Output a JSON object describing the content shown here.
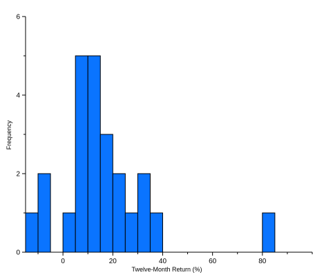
{
  "chart_data": {
    "type": "bar",
    "title": "",
    "xlabel": "Twelve-Month Return (%)",
    "ylabel": "Frequency",
    "xlim": [
      -15,
      100
    ],
    "ylim": [
      0,
      6
    ],
    "x_ticks": [
      0,
      20,
      40,
      60,
      80
    ],
    "x_minor_step": 10,
    "y_ticks": [
      0,
      2,
      4,
      6
    ],
    "y_minor_step": 1,
    "bin_width": 5,
    "bins": [
      {
        "start": -15,
        "end": -10,
        "count": 1
      },
      {
        "start": -10,
        "end": -5,
        "count": 2
      },
      {
        "start": 0,
        "end": 5,
        "count": 1
      },
      {
        "start": 5,
        "end": 10,
        "count": 5
      },
      {
        "start": 10,
        "end": 15,
        "count": 5
      },
      {
        "start": 15,
        "end": 20,
        "count": 3
      },
      {
        "start": 20,
        "end": 25,
        "count": 2
      },
      {
        "start": 25,
        "end": 30,
        "count": 1
      },
      {
        "start": 30,
        "end": 35,
        "count": 2
      },
      {
        "start": 35,
        "end": 40,
        "count": 1
      },
      {
        "start": 80,
        "end": 85,
        "count": 1
      }
    ],
    "bar_color": "#0a74ff",
    "grid": false,
    "legend": "none"
  }
}
